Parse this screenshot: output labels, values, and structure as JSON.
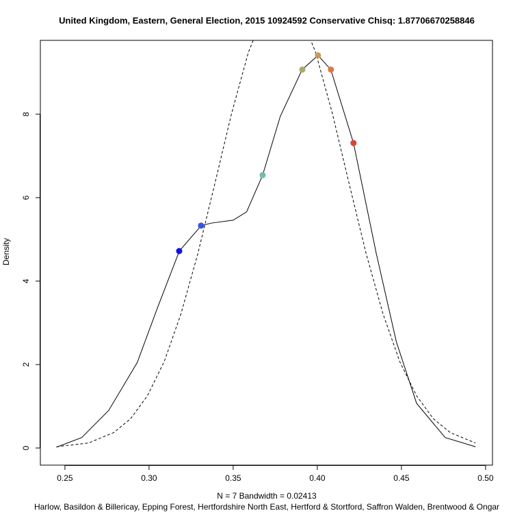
{
  "chart_data": {
    "type": "line",
    "title": "United Kingdom, Eastern, General Election, 2015 10924592 Conservative Chisq: 1.87706670258846",
    "x_label": "N = 7   Bandwidth = 0.02413",
    "subtitle": "Harlow, Basildon & Billericay, Epping Forest, Hertfordshire North East, Hertford & Stortford, Saffron Walden, Brentwood & Ongar",
    "y_label": "Density",
    "xlim": [
      0.2354,
      0.5041
    ],
    "ylim": [
      -0.41,
      9.77
    ],
    "xticks": [
      0.25,
      {
        "value": 0.3,
        "label": "0.30"
      },
      0.35,
      {
        "value": 0.4,
        "label": "0.40"
      },
      0.45,
      {
        "value": 0.5,
        "label": "0.50"
      }
    ],
    "yticks": [
      0,
      2,
      4,
      6,
      8
    ],
    "series": [
      {
        "type": "line",
        "color": "#000000",
        "dashed": false,
        "x": [
          0.245,
          0.26,
          0.276,
          0.293,
          0.305,
          0.318,
          0.331,
          0.337,
          0.35,
          0.358,
          0.3675,
          0.378,
          0.391,
          0.4004,
          0.408,
          0.4215,
          0.435,
          0.447,
          0.459,
          0.476,
          0.494
        ],
        "values": [
          0.02,
          0.25,
          0.9,
          2.05,
          3.36,
          4.72,
          5.33,
          5.39,
          5.46,
          5.66,
          6.54,
          7.95,
          9.07,
          9.41,
          9.07,
          7.31,
          4.67,
          2.54,
          1.07,
          0.25,
          0.03
        ]
      },
      {
        "type": "line",
        "color": "#000000",
        "dashed": true,
        "x": [
          0.245,
          0.264,
          0.279,
          0.289,
          0.299,
          0.309,
          0.319,
          0.329,
          0.339,
          0.349,
          0.359,
          0.369,
          0.379,
          0.389,
          0.399,
          0.409,
          0.419,
          0.429,
          0.439,
          0.449,
          0.459,
          0.469,
          0.479,
          0.494
        ],
        "values": [
          0.03,
          0.12,
          0.37,
          0.7,
          1.25,
          2.07,
          3.22,
          4.66,
          6.32,
          8.01,
          9.48,
          10.49,
          10.85,
          10.49,
          9.48,
          8.01,
          6.32,
          4.66,
          3.22,
          2.07,
          1.25,
          0.7,
          0.37,
          0.12
        ]
      },
      {
        "type": "scatter",
        "colors": [
          "#1010ee",
          "#3355ee",
          "#77bbaa",
          "#aaaa66",
          "#cc9955",
          "#dd7744",
          "#dd4433"
        ],
        "x": [
          0.3179,
          0.3309,
          0.3675,
          0.3911,
          0.4004,
          0.4081,
          0.4215
        ],
        "values": [
          4.72,
          5.33,
          6.54,
          9.07,
          9.41,
          9.07,
          7.31
        ]
      }
    ]
  }
}
